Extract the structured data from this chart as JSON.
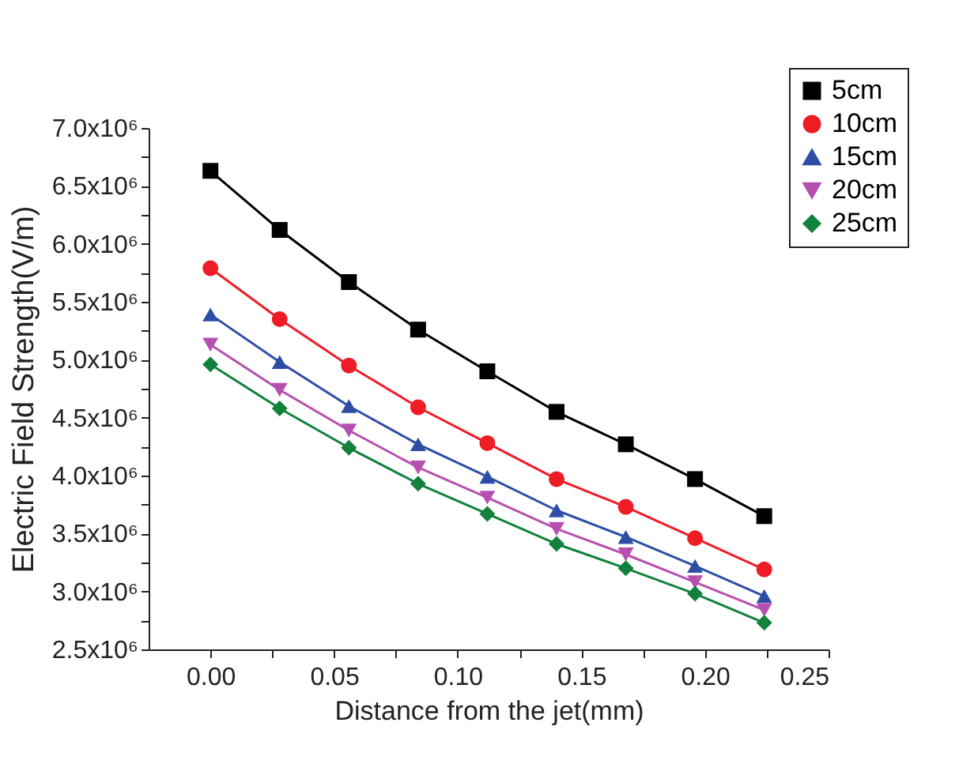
{
  "chart_data": {
    "type": "line",
    "xlabel": "Distance from the jet(mm)",
    "ylabel": "Electric Field Strength(V/m)",
    "x": [
      0,
      0.028,
      0.056,
      0.084,
      0.112,
      0.14,
      0.168,
      0.196,
      0.224
    ],
    "series": [
      {
        "name": "5cm",
        "color": "#000000",
        "marker": "square",
        "values": [
          6630000,
          6120000,
          5670000,
          5260000,
          4900000,
          4550000,
          4270000,
          3970000,
          3650000
        ]
      },
      {
        "name": "10cm",
        "color": "#ee1c25",
        "marker": "circle",
        "values": [
          5790000,
          5350000,
          4950000,
          4590000,
          4280000,
          3970000,
          3730000,
          3460000,
          3190000
        ]
      },
      {
        "name": "15cm",
        "color": "#2e4ea6",
        "marker": "triangle",
        "values": [
          5390000,
          4980000,
          4600000,
          4270000,
          3990000,
          3700000,
          3470000,
          3220000,
          2960000
        ]
      },
      {
        "name": "20cm",
        "color": "#b650b0",
        "marker": "triangle-down",
        "values": [
          5130000,
          4740000,
          4390000,
          4070000,
          3810000,
          3540000,
          3320000,
          3080000,
          2840000
        ]
      },
      {
        "name": "25cm",
        "color": "#11813c",
        "marker": "diamond",
        "values": [
          4960000,
          4580000,
          4240000,
          3930000,
          3670000,
          3410000,
          3200000,
          2980000,
          2730000
        ]
      }
    ],
    "xlim": [
      -0.025,
      0.25
    ],
    "xticks": [
      {
        "value": 0,
        "label": "0.00"
      },
      {
        "value": 0.025,
        "label": null
      },
      {
        "value": 0.05,
        "label": "0.05"
      },
      {
        "value": 0.075,
        "label": null
      },
      {
        "value": 0.1,
        "label": "0.10"
      },
      {
        "value": 0.125,
        "label": null
      },
      {
        "value": 0.15,
        "label": "0.15"
      },
      {
        "value": 0.175,
        "label": null
      },
      {
        "value": 0.2,
        "label": "0.20"
      },
      {
        "value": 0.225,
        "label": null
      },
      {
        "value": 0.25,
        "label": "0.25"
      }
    ],
    "ylim": [
      2500000,
      7000000
    ],
    "yticks": [
      {
        "value": 2500000,
        "label": "2.5x10⁶"
      },
      {
        "value": 2750000,
        "label": null
      },
      {
        "value": 3000000,
        "label": "3.0x10⁶"
      },
      {
        "value": 3250000,
        "label": null
      },
      {
        "value": 3500000,
        "label": "3.5x10⁶"
      },
      {
        "value": 3750000,
        "label": null
      },
      {
        "value": 4000000,
        "label": "4.0x10⁶"
      },
      {
        "value": 4250000,
        "label": null
      },
      {
        "value": 4500000,
        "label": "4.5x10⁶"
      },
      {
        "value": 4750000,
        "label": null
      },
      {
        "value": 5000000,
        "label": "5.0x10⁶"
      },
      {
        "value": 5250000,
        "label": null
      },
      {
        "value": 5500000,
        "label": "5.5x10⁶"
      },
      {
        "value": 5750000,
        "label": null
      },
      {
        "value": 6000000,
        "label": "6.0x10⁶"
      },
      {
        "value": 6250000,
        "label": null
      },
      {
        "value": 6500000,
        "label": "6.5x10⁶"
      },
      {
        "value": 6750000,
        "label": null
      },
      {
        "value": 7000000,
        "label": "7.0x10⁶"
      }
    ],
    "grid": false,
    "legend": "top right"
  }
}
